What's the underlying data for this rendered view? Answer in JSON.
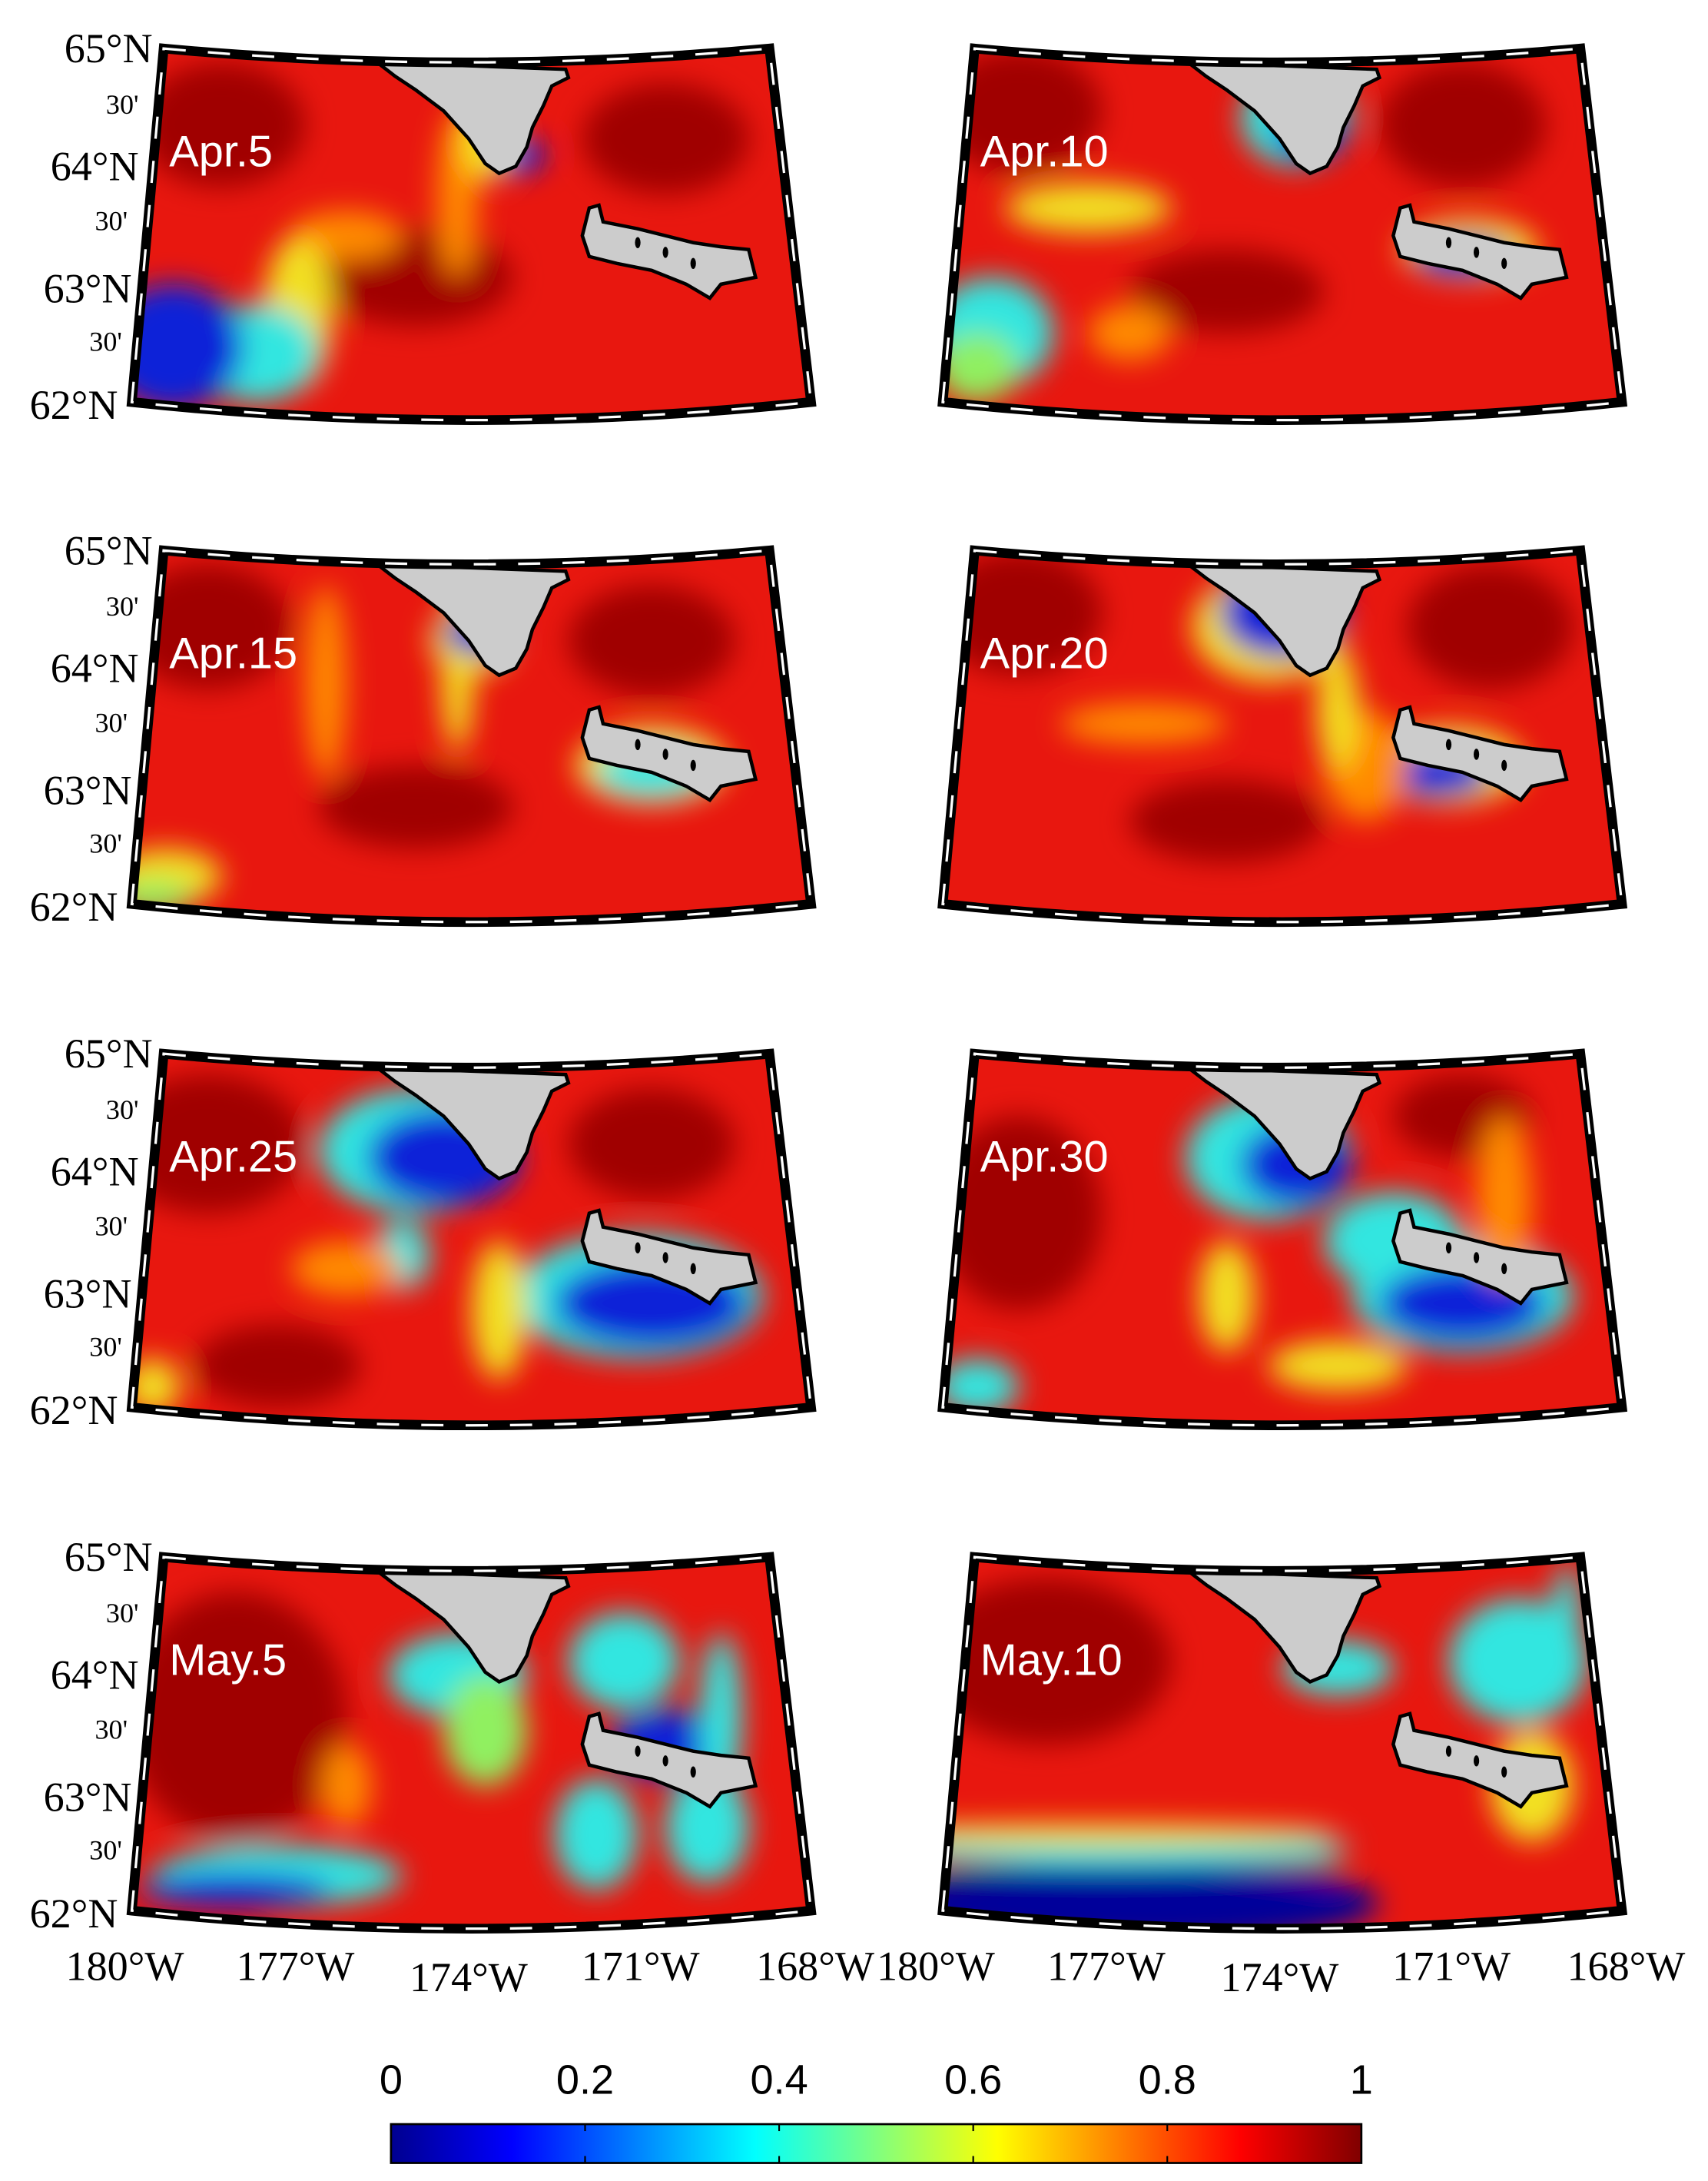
{
  "panels": [
    {
      "label": "Apr.5"
    },
    {
      "label": "Apr.10"
    },
    {
      "label": "Apr.15"
    },
    {
      "label": "Apr.20"
    },
    {
      "label": "Apr.25"
    },
    {
      "label": "Apr.30"
    },
    {
      "label": "May.5"
    },
    {
      "label": "May.10"
    }
  ],
  "lat_labels": [
    "65°N",
    "30'",
    "64°N",
    "30'",
    "63°N",
    "30'",
    "62°N"
  ],
  "lon_labels": [
    "180°W",
    "177°W",
    "174°W",
    "171°W",
    "168°W"
  ],
  "colorbar": {
    "lim": [
      0,
      1
    ],
    "ticks": [
      0,
      0.2,
      0.4,
      0.6,
      0.8,
      1
    ]
  }
}
